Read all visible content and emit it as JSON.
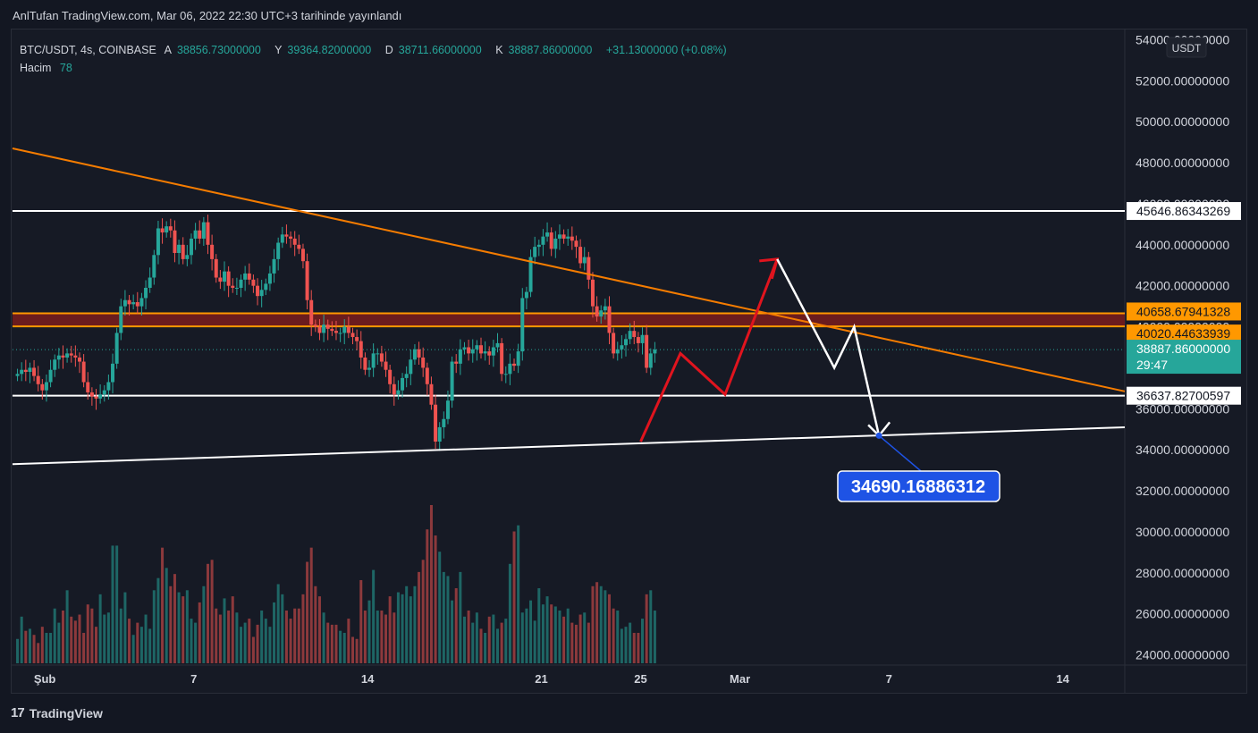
{
  "header": {
    "title": "AnlTufan TradingView.com, Mar 06, 2022 22:30 UTC+3 tarihinde yayınlandı"
  },
  "legend": {
    "symbol": "BTC/USDT, 4s, COINBASE",
    "open_label": "A",
    "open": "38856.73000000",
    "high_label": "Y",
    "high": "39364.82000000",
    "low_label": "D",
    "low": "38711.66000000",
    "close_label": "K",
    "close": "38887.86000000",
    "change": "+31.13000000 (+0.08%)",
    "volume_label": "Hacim",
    "volume": "78"
  },
  "currency_badge": "USDT",
  "footer": {
    "brand": "TradingView"
  },
  "colors": {
    "up": "#26a69a",
    "down": "#ef5350",
    "trend": "#f57c00",
    "zone_fill": "#7a1d1d",
    "zone_line": "#ff9800",
    "level_line": "#ffffff",
    "target": "#1e53e5",
    "bg": "#161a25"
  },
  "chart_data": {
    "type": "candlestick",
    "symbol": "BTC/USDT",
    "interval": "4s",
    "ylim": [
      23500,
      54500
    ],
    "y_ticks": [
      24000,
      26000,
      28000,
      30000,
      32000,
      34000,
      36000,
      38000,
      40000,
      42000,
      44000,
      46000,
      48000,
      50000,
      52000,
      54000
    ],
    "y_tick_labels": [
      "24000.00000000",
      "26000.00000000",
      "28000.00000000",
      "30000.00000000",
      "32000.00000000",
      "34000.00000000",
      "36000.00000000",
      "38000.00000000",
      "40000.00000000",
      "42000.00000000",
      "44000.00000000",
      "46000.00000000",
      "48000.00000000",
      "50000.00000000",
      "52000.00000000",
      "54000.00000000"
    ],
    "x_ticks": [
      {
        "label": "Şub",
        "day": 0
      },
      {
        "label": "7",
        "day": 6
      },
      {
        "label": "14",
        "day": 13
      },
      {
        "label": "21",
        "day": 20
      },
      {
        "label": "25",
        "day": 24
      },
      {
        "label": "Mar",
        "day": 28
      },
      {
        "label": "7",
        "day": 34
      },
      {
        "label": "14",
        "day": 41
      }
    ],
    "x_range_days": [
      -1.3,
      43.5
    ],
    "last_candle_day": 33.8,
    "price_labels": [
      {
        "value": 45646.86343269,
        "text": "45646.86343269",
        "style": "white"
      },
      {
        "value": 40658.67941328,
        "text": "40658.67941328",
        "style": "orange"
      },
      {
        "value": 40020.44633939,
        "text": "40020.44633939",
        "style": "orange"
      },
      {
        "value": 38887.86,
        "text": "38887.86000000",
        "sub": "29:47",
        "style": "teal"
      },
      {
        "value": 36637.82700597,
        "text": "36637.82700597",
        "style": "white"
      }
    ],
    "horizontal_lines": [
      {
        "value": 45646.86343269,
        "color": "white"
      },
      {
        "value": 36637.82700597,
        "color": "white"
      }
    ],
    "zone": {
      "top": 40658.67941328,
      "bottom": 40020.44633939
    },
    "trendlines": [
      {
        "name": "descending-resistance",
        "color": "orange",
        "p1": {
          "day": -1.3,
          "value": 48700
        },
        "p2": {
          "day": 43.5,
          "value": 36850
        }
      },
      {
        "name": "ascending-support",
        "color": "white",
        "p1": {
          "day": -1.3,
          "value": 33300
        },
        "p2": {
          "day": 43.5,
          "value": 35100
        }
      }
    ],
    "red_path": [
      {
        "day": 24.0,
        "value": 34400
      },
      {
        "day": 25.6,
        "value": 38700
      },
      {
        "day": 27.4,
        "value": 36700
      },
      {
        "day": 29.5,
        "value": 43300
      }
    ],
    "white_path": [
      {
        "day": 29.5,
        "value": 43300
      },
      {
        "day": 31.8,
        "value": 38000
      },
      {
        "day": 32.6,
        "value": 40000
      },
      {
        "day": 33.6,
        "value": 34690
      }
    ],
    "target": {
      "value": 34690.16886312,
      "text": "34690.16886312",
      "day": 33.6
    },
    "candles": {
      "start_day": -1.1,
      "step_days": 0.1667,
      "close": [
        37700,
        37900,
        37800,
        38000,
        37600,
        37200,
        36900,
        37300,
        37900,
        38400,
        38600,
        38500,
        38700,
        38600,
        38500,
        38300,
        37300,
        36800,
        36600,
        36500,
        36700,
        36900,
        37300,
        38200,
        39700,
        41000,
        41300,
        41100,
        41200,
        41000,
        41400,
        41900,
        42400,
        43500,
        44800,
        44600,
        44900,
        44700,
        43600,
        44000,
        43300,
        43500,
        44300,
        44700,
        44300,
        45100,
        44000,
        43300,
        42400,
        42200,
        42700,
        42000,
        41900,
        41900,
        42300,
        42600,
        42300,
        42000,
        41500,
        41800,
        42100,
        42600,
        43300,
        44100,
        44500,
        44400,
        44300,
        44000,
        43800,
        43200,
        41300,
        40100,
        40000,
        39700,
        40100,
        39900,
        39800,
        39700,
        39700,
        40000,
        39700,
        39500,
        39300,
        38500,
        37900,
        38000,
        38700,
        38700,
        38300,
        37900,
        37200,
        36700,
        36900,
        37500,
        37700,
        38400,
        38900,
        38500,
        38000,
        37200,
        36200,
        34400,
        35100,
        35500,
        36400,
        38300,
        38200,
        38900,
        39000,
        38700,
        38900,
        39100,
        38700,
        38800,
        38600,
        39000,
        39200,
        37700,
        37700,
        38200,
        38100,
        38800,
        41400,
        41700,
        43400,
        43900,
        44000,
        44400,
        44600,
        43800,
        44300,
        44500,
        44300,
        44400,
        44200,
        43900,
        43100,
        43400,
        42300,
        41000,
        40500,
        40800,
        41000,
        39700,
        38700,
        38900,
        39100,
        39400,
        39800,
        39500,
        39200,
        39600,
        38000,
        38700,
        38887.86
      ],
      "volume": [
        1200,
        2300,
        1600,
        1700,
        1400,
        1000,
        1800,
        1500,
        1500,
        2700,
        2000,
        2600,
        3600,
        2300,
        2100,
        2400,
        1500,
        2900,
        2700,
        1800,
        3400,
        2400,
        2500,
        5800,
        5800,
        2700,
        3500,
        2200,
        1400,
        2000,
        1800,
        2400,
        1700,
        3600,
        4200,
        5700,
        4700,
        3800,
        4400,
        3500,
        3300,
        3600,
        2200,
        2000,
        3000,
        3800,
        4900,
        5100,
        2700,
        2400,
        3200,
        2600,
        3300,
        2500,
        1800,
        2000,
        2200,
        1300,
        1900,
        2600,
        2200,
        1800,
        3000,
        3900,
        3400,
        2600,
        2200,
        2700,
        2700,
        3400,
        5000,
        5700,
        3800,
        3300,
        2500,
        2000,
        1900,
        1900,
        1600,
        1500,
        2200,
        1300,
        1200,
        4100,
        2600,
        3100,
        4600,
        2600,
        2600,
        2400,
        3300,
        2500,
        3500,
        3400,
        3800,
        3300,
        3800,
        4500,
        5100,
        6600,
        7800,
        6300,
        5500,
        4500,
        4300,
        3100,
        3700,
        4500,
        2300,
        2600,
        2000,
        2500,
        1700,
        1500,
        2300,
        2400,
        1700,
        2000,
        2200,
        4900,
        6500,
        6800,
        2500,
        2700,
        3100,
        2100,
        3700,
        2900,
        3300,
        2900,
        2800,
        2600,
        2300,
        2700,
        2000,
        1900,
        2400,
        2500,
        2000,
        3800,
        4000,
        3800,
        3600,
        3400,
        2700,
        2600,
        1700,
        1800,
        2000,
        1500,
        1500,
        2200,
        3400,
        3600,
        2600
      ]
    }
  }
}
